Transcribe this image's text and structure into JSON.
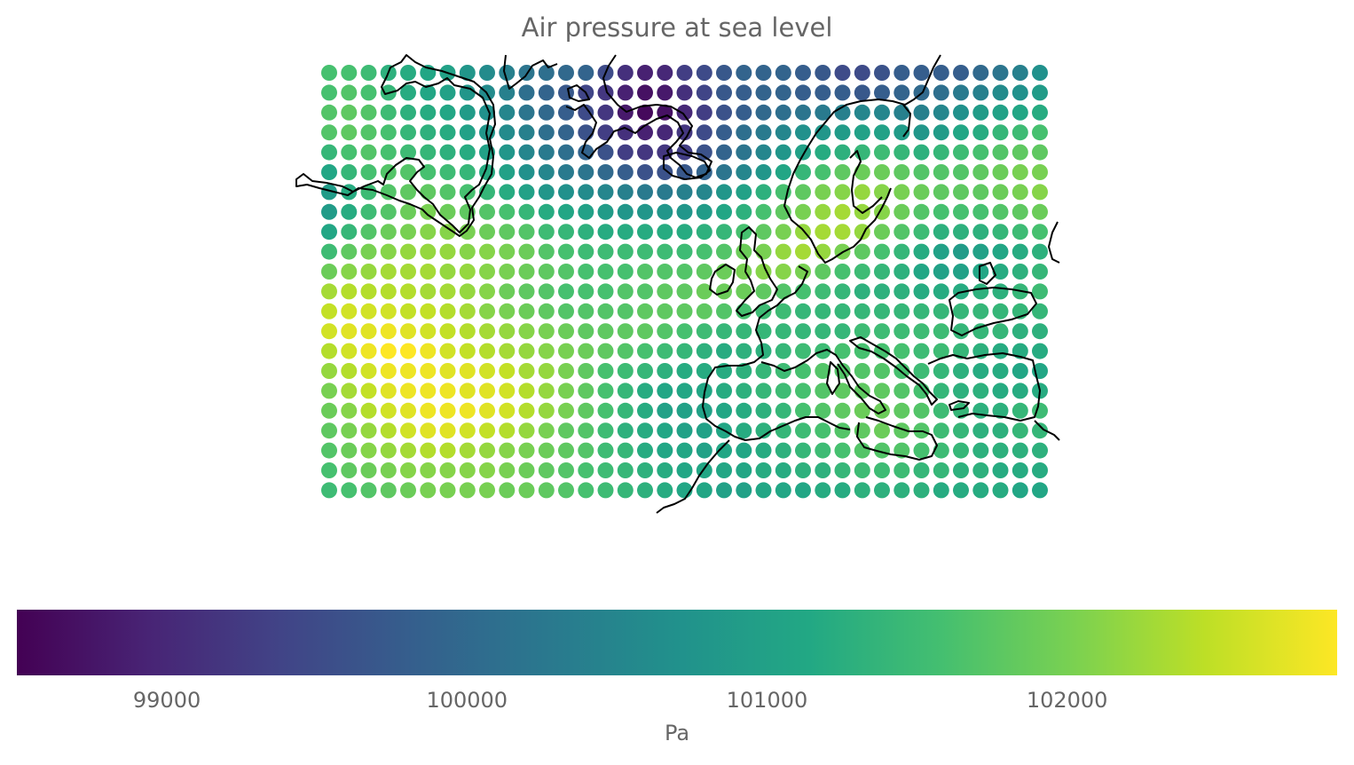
{
  "title": "Air pressure at sea level",
  "colorbar": {
    "label": "Pa",
    "min": 98500,
    "max": 102900,
    "ticks": [
      "99000",
      "100000",
      "101000",
      "102000"
    ],
    "colormap": "viridis"
  },
  "grid": {
    "lon_range": [
      -40,
      32
    ],
    "lat_range": [
      30,
      72
    ],
    "cols": 37,
    "rows": 22,
    "rows_values_north_to_south": [
      [
        101600,
        101600,
        101500,
        101300,
        101200,
        101100,
        101000,
        100800,
        100600,
        100400,
        100200,
        100100,
        100000,
        99900,
        99500,
        99100,
        98900,
        99000,
        99300,
        99500,
        99700,
        99900,
        99900,
        99900,
        99800,
        99700,
        99500,
        99500,
        99600,
        99800,
        99800,
        99800,
        99800,
        100000,
        100200,
        100400,
        100700
      ],
      [
        101600,
        101700,
        101600,
        101400,
        101200,
        101100,
        101000,
        100800,
        100600,
        100400,
        100100,
        99900,
        99700,
        99400,
        99200,
        98900,
        98700,
        98800,
        99100,
        99400,
        99700,
        99800,
        99900,
        99900,
        99800,
        99800,
        99800,
        99700,
        99800,
        99900,
        100000,
        100100,
        100300,
        100400,
        100600,
        100700,
        100900
      ],
      [
        101700,
        101800,
        101700,
        101500,
        101300,
        101200,
        101100,
        100900,
        100700,
        100500,
        100200,
        100000,
        99800,
        99500,
        99200,
        98800,
        98600,
        98700,
        99000,
        99300,
        99600,
        99800,
        100000,
        100100,
        100200,
        100300,
        100400,
        100500,
        100500,
        100400,
        100400,
        100500,
        100700,
        100900,
        101000,
        101100,
        101200
      ],
      [
        101700,
        101800,
        101700,
        101600,
        101400,
        101300,
        101200,
        101000,
        100800,
        100600,
        100400,
        100100,
        99900,
        99600,
        99300,
        99100,
        98900,
        99000,
        99200,
        99500,
        99800,
        100100,
        100300,
        100500,
        100700,
        100800,
        100900,
        101000,
        101000,
        100900,
        100800,
        100900,
        101100,
        101200,
        101400,
        101500,
        101600
      ],
      [
        101400,
        101600,
        101700,
        101600,
        101500,
        101400,
        101300,
        101200,
        101000,
        100800,
        100500,
        100300,
        100100,
        99900,
        99600,
        99300,
        99200,
        99200,
        99300,
        99600,
        99900,
        100200,
        100500,
        100800,
        101000,
        101200,
        101300,
        101400,
        101500,
        101400,
        101300,
        101400,
        101500,
        101600,
        101700,
        101800,
        101800
      ],
      [
        101100,
        101400,
        101600,
        101700,
        101700,
        101600,
        101500,
        101400,
        101200,
        101000,
        100700,
        100500,
        100300,
        100200,
        100000,
        99800,
        99600,
        99600,
        99700,
        99900,
        100200,
        100500,
        100800,
        101100,
        101400,
        101600,
        101800,
        101900,
        101900,
        101800,
        101700,
        101700,
        101700,
        101800,
        101900,
        102000,
        102000
      ],
      [
        100900,
        101200,
        101500,
        101700,
        101800,
        101800,
        101700,
        101600,
        101400,
        101200,
        101000,
        100800,
        100700,
        100600,
        100500,
        100400,
        100300,
        100300,
        100400,
        100500,
        100800,
        101000,
        101300,
        101600,
        101800,
        102000,
        102100,
        102200,
        102100,
        102000,
        101900,
        101800,
        101800,
        101800,
        101900,
        102000,
        102100
      ],
      [
        100900,
        101200,
        101500,
        101700,
        101900,
        102000,
        101900,
        101800,
        101700,
        101600,
        101400,
        101200,
        101100,
        101000,
        100900,
        100800,
        100800,
        100800,
        100800,
        100900,
        101100,
        101300,
        101600,
        101800,
        102000,
        102200,
        102300,
        102200,
        102100,
        101900,
        101700,
        101600,
        101600,
        101600,
        101700,
        101800,
        101900
      ],
      [
        101100,
        101400,
        101700,
        101900,
        102000,
        102100,
        102100,
        102000,
        101900,
        101800,
        101700,
        101500,
        101400,
        101300,
        101200,
        101200,
        101200,
        101200,
        101200,
        101300,
        101400,
        101600,
        101800,
        102000,
        102200,
        102300,
        102300,
        102200,
        101900,
        101700,
        101500,
        101300,
        101300,
        101300,
        101400,
        101500,
        101600
      ],
      [
        101500,
        101800,
        102000,
        102100,
        102200,
        102200,
        102200,
        102100,
        102100,
        102000,
        101900,
        101700,
        101600,
        101500,
        101500,
        101500,
        101500,
        101500,
        101500,
        101600,
        101700,
        101900,
        102000,
        102200,
        102300,
        102200,
        102000,
        101800,
        101600,
        101400,
        101200,
        101000,
        100900,
        101000,
        101100,
        101200,
        101300
      ],
      [
        101900,
        102100,
        102200,
        102300,
        102300,
        102300,
        102200,
        102200,
        102100,
        102000,
        101900,
        101800,
        101700,
        101600,
        101600,
        101600,
        101700,
        101700,
        101700,
        101800,
        101900,
        102000,
        102100,
        102100,
        102000,
        101800,
        101600,
        101500,
        101400,
        101300,
        101100,
        101000,
        101000,
        101100,
        101200,
        101300,
        101400
      ],
      [
        102300,
        102400,
        102400,
        102400,
        102400,
        102300,
        102300,
        102200,
        102100,
        101900,
        101800,
        101700,
        101600,
        101600,
        101600,
        101700,
        101700,
        101800,
        101800,
        101900,
        101900,
        101900,
        101800,
        101700,
        101600,
        101500,
        101400,
        101300,
        101300,
        101300,
        101200,
        101200,
        101200,
        101300,
        101300,
        101400,
        101500
      ],
      [
        102500,
        102600,
        102600,
        102600,
        102500,
        102500,
        102400,
        102300,
        102100,
        102000,
        101900,
        101800,
        101700,
        101700,
        101700,
        101700,
        101800,
        101800,
        101800,
        101800,
        101700,
        101600,
        101500,
        101500,
        101400,
        101400,
        101400,
        101400,
        101400,
        101400,
        101400,
        101400,
        101400,
        101400,
        101400,
        101400,
        101400
      ],
      [
        102600,
        102700,
        102700,
        102800,
        102700,
        102600,
        102500,
        102400,
        102300,
        102200,
        102100,
        102000,
        101900,
        101800,
        101800,
        101800,
        101800,
        101700,
        101600,
        101500,
        101400,
        101400,
        101400,
        101400,
        101400,
        101400,
        101400,
        101500,
        101500,
        101500,
        101500,
        101500,
        101400,
        101400,
        101400,
        101300,
        101300
      ],
      [
        102400,
        102600,
        102800,
        102900,
        102900,
        102800,
        102600,
        102500,
        102400,
        102300,
        102200,
        102100,
        102000,
        101900,
        101800,
        101700,
        101600,
        101500,
        101400,
        101300,
        101200,
        101300,
        101300,
        101400,
        101500,
        101500,
        101600,
        101600,
        101600,
        101600,
        101500,
        101500,
        101400,
        101300,
        101200,
        101200,
        101200
      ],
      [
        102200,
        102400,
        102600,
        102800,
        102800,
        102800,
        102700,
        102700,
        102600,
        102500,
        102300,
        102200,
        102000,
        101800,
        101600,
        101500,
        101400,
        101300,
        101200,
        101200,
        101200,
        101300,
        101400,
        101500,
        101600,
        101700,
        101700,
        101700,
        101700,
        101600,
        101500,
        101400,
        101300,
        101200,
        101200,
        101100,
        101100
      ],
      [
        102000,
        102300,
        102500,
        102700,
        102800,
        102800,
        102800,
        102700,
        102700,
        102600,
        102400,
        102200,
        102000,
        101800,
        101600,
        101400,
        101200,
        101100,
        101100,
        101100,
        101200,
        101300,
        101400,
        101500,
        101600,
        101700,
        101800,
        101800,
        101800,
        101700,
        101600,
        101400,
        101300,
        101300,
        101200,
        101200,
        101200
      ],
      [
        101900,
        102100,
        102400,
        102600,
        102700,
        102800,
        102800,
        102800,
        102700,
        102600,
        102400,
        102200,
        102000,
        101800,
        101600,
        101400,
        101200,
        101000,
        101000,
        101000,
        101100,
        101200,
        101300,
        101400,
        101600,
        101700,
        101800,
        101900,
        101900,
        101800,
        101700,
        101500,
        101400,
        101300,
        101300,
        101400,
        101500
      ],
      [
        101800,
        102000,
        102200,
        102400,
        102600,
        102700,
        102700,
        102600,
        102500,
        102400,
        102200,
        102000,
        101800,
        101700,
        101500,
        101300,
        101200,
        101100,
        101000,
        101000,
        101100,
        101200,
        101300,
        101400,
        101500,
        101600,
        101700,
        101800,
        101900,
        101800,
        101700,
        101500,
        101400,
        101300,
        101300,
        101400,
        101400
      ],
      [
        101700,
        101900,
        102100,
        102200,
        102300,
        102400,
        102400,
        102300,
        102200,
        102100,
        102000,
        101900,
        101800,
        101700,
        101500,
        101400,
        101200,
        101100,
        101100,
        101000,
        101100,
        101100,
        101200,
        101300,
        101400,
        101500,
        101600,
        101700,
        101700,
        101700,
        101600,
        101500,
        101400,
        101300,
        101300,
        101300,
        101300
      ],
      [
        101600,
        101800,
        101900,
        102000,
        102100,
        102100,
        102100,
        102100,
        102100,
        102000,
        101900,
        101800,
        101700,
        101600,
        101500,
        101400,
        101300,
        101200,
        101100,
        101100,
        101100,
        101100,
        101200,
        101200,
        101300,
        101300,
        101400,
        101500,
        101500,
        101500,
        101400,
        101400,
        101300,
        101300,
        101200,
        101200,
        101200
      ],
      [
        101500,
        101600,
        101700,
        101800,
        101900,
        102000,
        102000,
        102000,
        102000,
        101900,
        101900,
        101800,
        101700,
        101600,
        101500,
        101400,
        101300,
        101200,
        101100,
        101100,
        101000,
        101000,
        101100,
        101100,
        101100,
        101200,
        101200,
        101300,
        101300,
        101300,
        101300,
        101200,
        101200,
        101200,
        101200,
        101100,
        101100
      ]
    ]
  },
  "colors": {
    "coastline": "#000000",
    "text": "#666666"
  }
}
